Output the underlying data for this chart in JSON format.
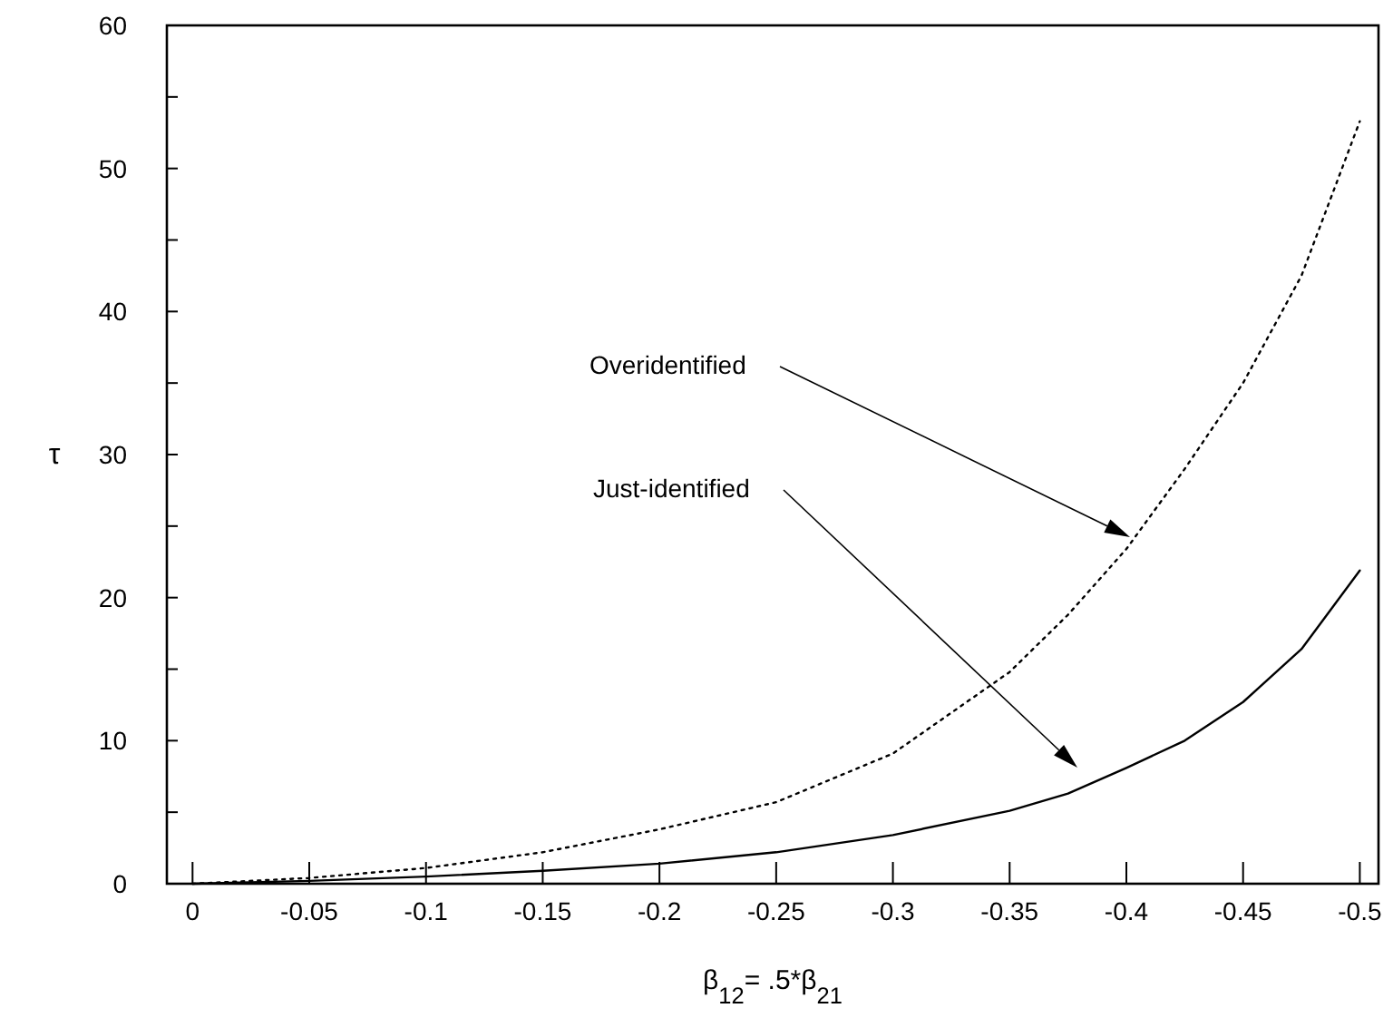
{
  "chart_data": {
    "type": "line",
    "xlabel": "β$_{12}$= .5*β$_{21}$",
    "ylabel": "τ",
    "x": [
      0,
      -0.05,
      -0.1,
      -0.15,
      -0.2,
      -0.25,
      -0.3,
      -0.35,
      -0.375,
      -0.4,
      -0.425,
      -0.45,
      -0.475,
      -0.5
    ],
    "series": [
      {
        "color": "#000000",
        "line_style": "dotted",
        "values": [
          0,
          0.4,
          1.1,
          2.2,
          3.8,
          5.7,
          9.1,
          14.8,
          18.8,
          23.4,
          29,
          35,
          42.5,
          53.3
        ]
      },
      {
        "color": "#000000",
        "line_style": "solid",
        "values": [
          0,
          0.2,
          0.5,
          0.9,
          1.4,
          2.2,
          3.4,
          5.1,
          6.3,
          8.1,
          10,
          12.7,
          16.4,
          21.9
        ]
      }
    ],
    "xlim": [
      0.011,
      -0.508
    ],
    "ylim": [
      0,
      60
    ],
    "xticks": [
      {
        "value": 0,
        "label": "0"
      },
      {
        "value": -0.05,
        "label": "-0.05"
      },
      {
        "value": -0.1,
        "label": "-0.1"
      },
      {
        "value": -0.15,
        "label": "-0.15"
      },
      {
        "value": -0.2,
        "label": "-0.2"
      },
      {
        "value": -0.25,
        "label": "-0.25"
      },
      {
        "value": -0.3,
        "label": "-0.3"
      },
      {
        "value": -0.35,
        "label": "-0.35"
      },
      {
        "value": -0.4,
        "label": "-0.4"
      },
      {
        "value": -0.45,
        "label": "-0.45"
      },
      {
        "value": -0.5,
        "label": "-0.5"
      }
    ],
    "yticks": [
      0,
      {
        "value": 5,
        "label": null
      },
      10,
      {
        "value": 15,
        "label": null
      },
      20,
      {
        "value": 25,
        "label": null
      },
      30,
      {
        "value": 35,
        "label": null
      },
      40,
      {
        "value": 45,
        "label": null
      },
      50,
      {
        "value": 55,
        "label": null
      },
      60
    ],
    "annotations": [
      "Overidentified",
      "Just-identified"
    ],
    "grid": false
  }
}
